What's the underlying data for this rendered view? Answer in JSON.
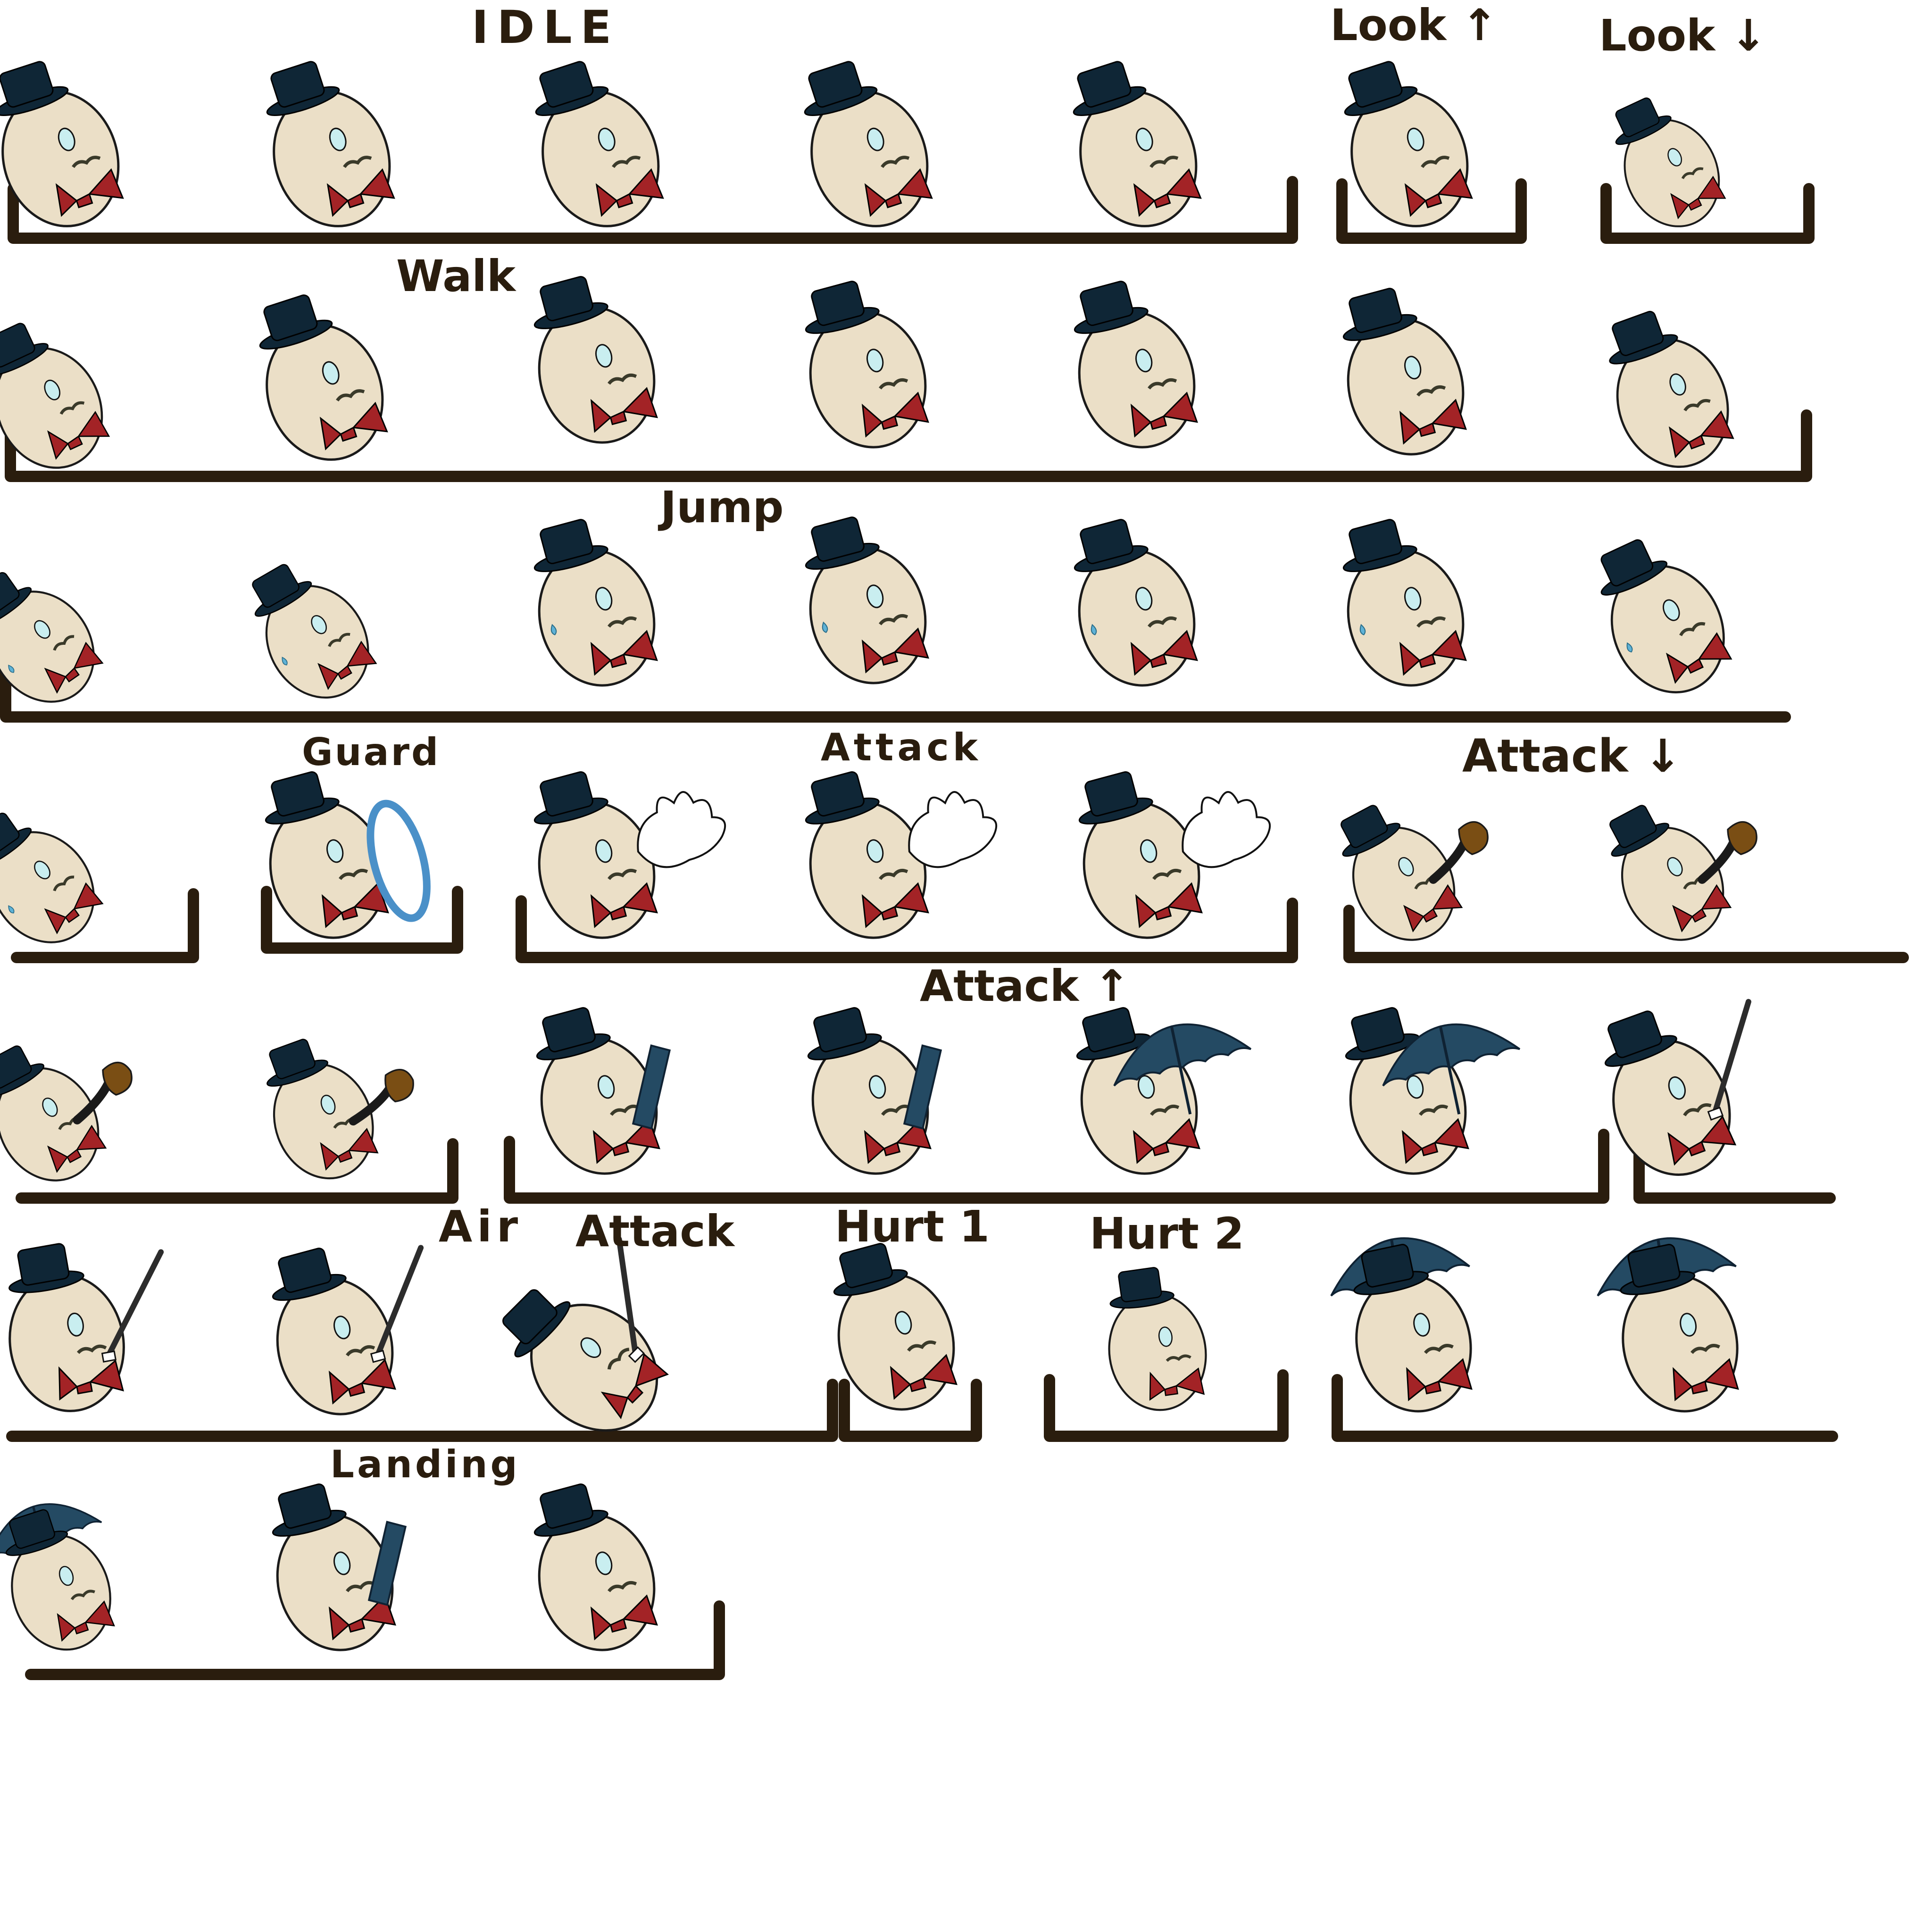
{
  "colors": {
    "background": "#ffffff",
    "bracket": "#2a1d0e",
    "egg_body": "#ebdfc7",
    "egg_outline": "#1a1a1a",
    "hat": "#0f2636",
    "bowtie": "#a32326",
    "monocle": "#c9eef0",
    "mustache": "#3a3a2a",
    "glove": "#ffffff",
    "mirror_frame": "#4a90c8",
    "pipe": "#7a4e14",
    "umbrella": "#244a63",
    "cane": "#2c2c2c",
    "sweat": "#5fb2d6"
  },
  "labels": {
    "idle": "IDLE",
    "look_up": "Look ↑",
    "look_down": "Look ↓",
    "walk": "Walk",
    "jump": "Jump",
    "guard": "Guard",
    "attack": "Attack",
    "attack_down": "Attack ↓",
    "attack_up": "Attack ↑",
    "air": "Air",
    "air_attack": "Attack",
    "hurt1": "Hurt 1",
    "hurt2": "Hurt 2",
    "landing": "Landing"
  },
  "animations": [
    {
      "label_key": "idle",
      "frames": 5,
      "frame_props": [
        "none",
        "none",
        "none",
        "none",
        "none"
      ]
    },
    {
      "label_key": "look_up",
      "frames": 1,
      "frame_props": [
        "none"
      ]
    },
    {
      "label_key": "look_down",
      "frames": 1,
      "frame_props": [
        "none"
      ]
    },
    {
      "label_key": "walk",
      "frames": 7,
      "frame_props": [
        "none",
        "none",
        "none",
        "none",
        "none",
        "none",
        "none"
      ]
    },
    {
      "label_key": "jump",
      "frames": 7,
      "frame_props": [
        "sweat",
        "sweat",
        "sweat",
        "sweat",
        "sweat",
        "sweat",
        "sweat"
      ]
    },
    {
      "label_key": "guard",
      "frames": 2,
      "frame_props": [
        "sweat",
        "mirror"
      ]
    },
    {
      "label_key": "attack",
      "frames": 3,
      "frame_props": [
        "glove",
        "glove",
        "glove"
      ]
    },
    {
      "label_key": "attack_down",
      "frames": 4,
      "frame_props": [
        "pipe",
        "pipe",
        "pipe",
        "pipe"
      ]
    },
    {
      "label_key": "attack_up",
      "frames": 5,
      "frame_props": [
        "closed-umbrella",
        "closed-umbrella",
        "umbrella",
        "umbrella",
        "cane"
      ]
    },
    {
      "label_key": "air_attack",
      "frames": 3,
      "frame_props": [
        "cane",
        "cane",
        "cane"
      ]
    },
    {
      "label_key": "hurt1",
      "frames": 1,
      "frame_props": [
        "none"
      ]
    },
    {
      "label_key": "hurt2",
      "frames": 1,
      "frame_props": [
        "none"
      ]
    },
    {
      "label_key": "air_attack",
      "frames": 2,
      "frame_props": [
        "umbrella-overhead",
        "umbrella-overhead"
      ]
    },
    {
      "label_key": "landing",
      "frames": 3,
      "frame_props": [
        "umbrella-overhead",
        "closed-umbrella",
        "none"
      ]
    }
  ]
}
